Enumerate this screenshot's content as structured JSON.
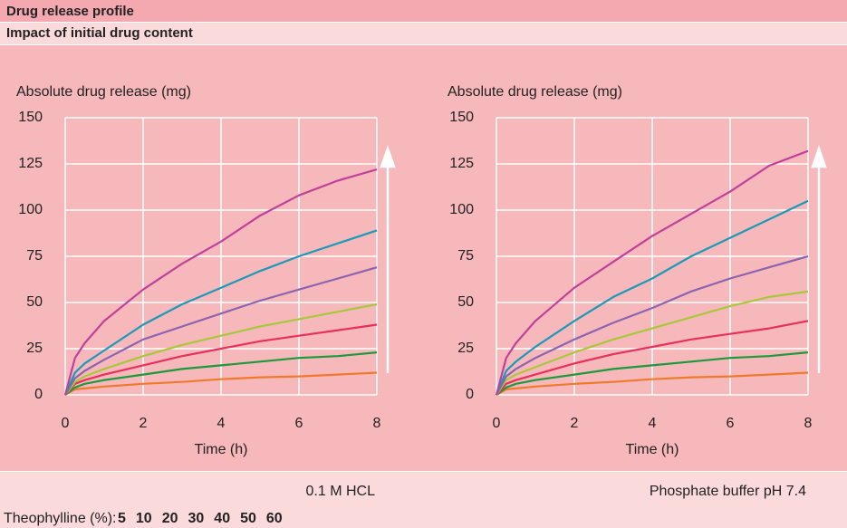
{
  "header": {
    "title": "Drug release profile",
    "subtitle": "Impact of initial drug content"
  },
  "legend": {
    "label": "Theophylline (%):"
  },
  "chart_data": [
    {
      "type": "line",
      "ylabel": "Absolute drug release (mg)",
      "xlabel": "Time (h)",
      "caption": "0.1 M HCL",
      "x": [
        0,
        0.25,
        0.5,
        1,
        2,
        3,
        4,
        5,
        6,
        7,
        8
      ],
      "xlim": [
        0,
        8
      ],
      "xticks": [
        0,
        2,
        4,
        6,
        8
      ],
      "ylim": [
        0,
        150
      ],
      "yticks": [
        0,
        25,
        50,
        75,
        100,
        125,
        150
      ],
      "grid": true,
      "series": [
        {
          "name": "5",
          "color": "#f07a2a",
          "values": [
            0,
            3,
            3.5,
            4.5,
            6,
            7,
            8.5,
            9.5,
            10,
            11,
            12
          ]
        },
        {
          "name": "10",
          "color": "#1a9a3a",
          "values": [
            0,
            4,
            6,
            8,
            11,
            14,
            16,
            18,
            20,
            21,
            23
          ]
        },
        {
          "name": "20",
          "color": "#e8305a",
          "values": [
            0,
            6,
            8,
            11,
            16,
            21,
            25,
            29,
            32,
            35,
            38
          ]
        },
        {
          "name": "30",
          "color": "#a8c83a",
          "values": [
            0,
            7,
            10,
            14,
            21,
            27,
            32,
            37,
            41,
            45,
            49
          ]
        },
        {
          "name": "40",
          "color": "#8a64b0",
          "values": [
            0,
            9,
            13,
            19,
            30,
            37,
            44,
            51,
            57,
            63,
            69
          ]
        },
        {
          "name": "50",
          "color": "#1a9ab8",
          "values": [
            0,
            12,
            17,
            24,
            38,
            49,
            58,
            67,
            75,
            82,
            89
          ]
        },
        {
          "name": "60",
          "color": "#c0409a",
          "values": [
            0,
            20,
            28,
            40,
            57,
            71,
            83,
            97,
            108,
            116,
            122
          ]
        }
      ]
    },
    {
      "type": "line",
      "ylabel": "Absolute drug release (mg)",
      "xlabel": "Time (h)",
      "caption": "Phosphate buffer pH 7.4",
      "x": [
        0,
        0.25,
        0.5,
        1,
        2,
        3,
        4,
        5,
        6,
        7,
        8
      ],
      "xlim": [
        0,
        8
      ],
      "xticks": [
        0,
        2,
        4,
        6,
        8
      ],
      "ylim": [
        0,
        150
      ],
      "yticks": [
        0,
        25,
        50,
        75,
        100,
        125,
        150
      ],
      "grid": true,
      "series": [
        {
          "color": "#f07a2a",
          "values": [
            0,
            3,
            3.5,
            4.5,
            6,
            7,
            8.5,
            9.5,
            10,
            11,
            12
          ]
        },
        {
          "color": "#1a9a3a",
          "values": [
            0,
            4,
            6,
            8,
            11,
            14,
            16,
            18,
            20,
            21,
            23
          ]
        },
        {
          "color": "#e8305a",
          "values": [
            0,
            6,
            8,
            11,
            17,
            22,
            26,
            30,
            33,
            36,
            40
          ]
        },
        {
          "color": "#a8c83a",
          "values": [
            0,
            8,
            11,
            15,
            23,
            30,
            36,
            42,
            48,
            53,
            56
          ]
        },
        {
          "color": "#8a64b0",
          "values": [
            0,
            10,
            14,
            20,
            30,
            39,
            47,
            56,
            63,
            69,
            75
          ]
        },
        {
          "color": "#1a9ab8",
          "values": [
            0,
            13,
            18,
            26,
            40,
            53,
            63,
            75,
            85,
            95,
            105
          ]
        },
        {
          "color": "#c0409a",
          "values": [
            0,
            20,
            28,
            40,
            58,
            72,
            86,
            98,
            110,
            124,
            132
          ]
        }
      ]
    }
  ]
}
